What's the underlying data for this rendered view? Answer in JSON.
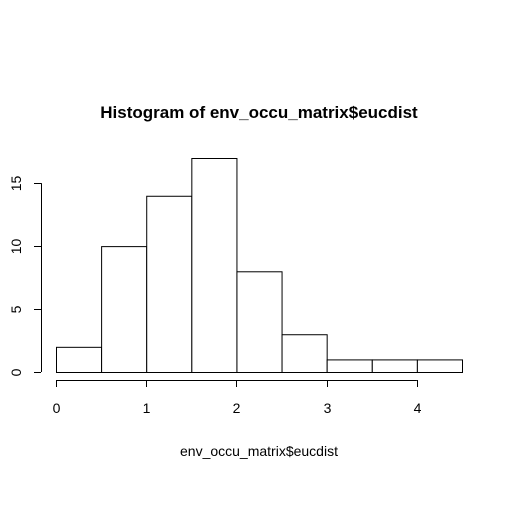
{
  "chart_data": {
    "type": "bar",
    "title": "Histogram of env_occu_matrix$eucdist",
    "xlabel": "env_occu_matrix$eucdist",
    "ylabel": "",
    "bins": [
      {
        "from": 0.0,
        "to": 0.5,
        "count": 2
      },
      {
        "from": 0.5,
        "to": 1.0,
        "count": 10
      },
      {
        "from": 1.0,
        "to": 1.5,
        "count": 14
      },
      {
        "from": 1.5,
        "to": 2.0,
        "count": 17
      },
      {
        "from": 2.0,
        "to": 2.5,
        "count": 8
      },
      {
        "from": 2.5,
        "to": 3.0,
        "count": 3
      },
      {
        "from": 3.0,
        "to": 3.5,
        "count": 1
      },
      {
        "from": 3.5,
        "to": 4.0,
        "count": 1
      },
      {
        "from": 4.0,
        "to": 4.5,
        "count": 1
      }
    ],
    "xlim": [
      0,
      4.5
    ],
    "ylim": [
      0,
      17
    ],
    "x_ticks": [
      0,
      1,
      2,
      3,
      4
    ],
    "y_ticks": [
      0,
      5,
      10,
      15
    ],
    "x_tick_labels": [
      "0",
      "1",
      "2",
      "3",
      "4"
    ],
    "y_tick_labels": [
      "0",
      "5",
      "10",
      "15"
    ],
    "grid": false,
    "bar_fill": "#ffffff",
    "bar_stroke": "#000000"
  }
}
